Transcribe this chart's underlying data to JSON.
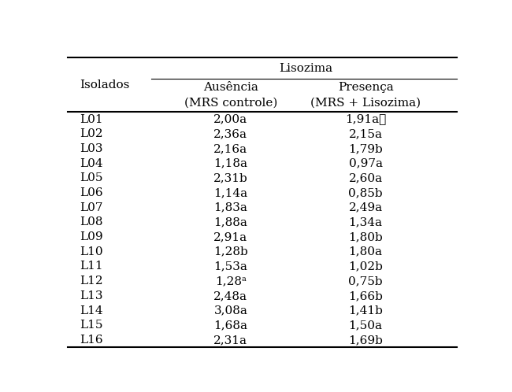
{
  "title": "Lisozima",
  "col1_header": "Isolados",
  "col2_header": "Ausência\n(MRS controle)",
  "col3_header": "Presença\n(MRS + Lisozima)",
  "rows": [
    [
      "L01",
      "2,00a",
      "1,91a★"
    ],
    [
      "L02",
      "2,36a",
      "2,15a"
    ],
    [
      "L03",
      "2,16a",
      "1,79b"
    ],
    [
      "L04",
      "1,18a",
      "0,97a"
    ],
    [
      "L05",
      "2,31b",
      "2,60a"
    ],
    [
      "L06",
      "1,14a",
      "0,85b"
    ],
    [
      "L07",
      "1,83a",
      "2,49a"
    ],
    [
      "L08",
      "1,88a",
      "1,34a"
    ],
    [
      "L09",
      "2,91a",
      "1,80b"
    ],
    [
      "L10",
      "1,28b",
      "1,80a"
    ],
    [
      "L11",
      "1,53a",
      "1,02b"
    ],
    [
      "L12",
      "1,28ᵃ",
      "0,75b"
    ],
    [
      "L13",
      "2,48a",
      "1,66b"
    ],
    [
      "L14",
      "3,08a",
      "1,41b"
    ],
    [
      "L15",
      "1,68a",
      "1,50a"
    ],
    [
      "L16",
      "2,31a",
      "1,69b"
    ]
  ],
  "bg_color": "#ffffff",
  "text_color": "#000000",
  "font_size": 11,
  "header_font_size": 11
}
